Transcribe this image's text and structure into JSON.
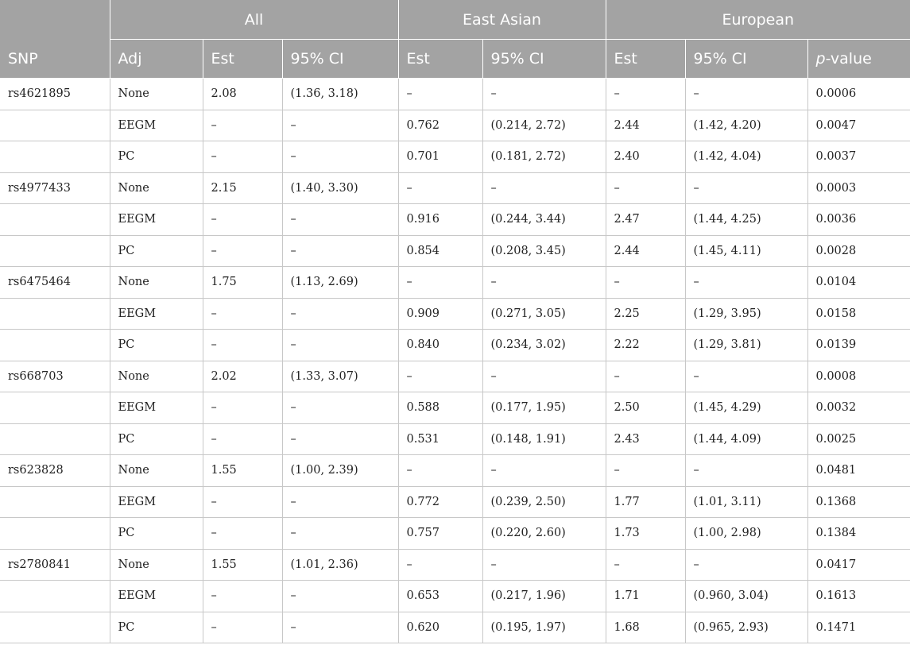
{
  "header": {
    "groups": [
      "All",
      "East Asian",
      "European"
    ],
    "columns": [
      "SNP",
      "Adj",
      "Est",
      "95% CI",
      "Est",
      "95% CI",
      "Est",
      "95% CI"
    ],
    "pvalue_prefix": "p",
    "pvalue_suffix": "-value"
  },
  "rows": [
    {
      "snp": "rs4621895",
      "adj": "None",
      "all_est": "2.08",
      "all_ci": "(1.36, 3.18)",
      "ea_est": "–",
      "ea_ci": "–",
      "eu_est": "–",
      "eu_ci": "–",
      "p": "0.0006"
    },
    {
      "snp": "",
      "adj": "EEGM",
      "all_est": "–",
      "all_ci": "–",
      "ea_est": "0.762",
      "ea_ci": "(0.214, 2.72)",
      "eu_est": "2.44",
      "eu_ci": "(1.42, 4.20)",
      "p": "0.0047"
    },
    {
      "snp": "",
      "adj": "PC",
      "all_est": "–",
      "all_ci": "–",
      "ea_est": "0.701",
      "ea_ci": "(0.181, 2.72)",
      "eu_est": "2.40",
      "eu_ci": "(1.42, 4.04)",
      "p": "0.0037"
    },
    {
      "snp": "rs4977433",
      "adj": "None",
      "all_est": "2.15",
      "all_ci": "(1.40, 3.30)",
      "ea_est": "–",
      "ea_ci": "–",
      "eu_est": "–",
      "eu_ci": "–",
      "p": "0.0003"
    },
    {
      "snp": "",
      "adj": "EEGM",
      "all_est": "–",
      "all_ci": "–",
      "ea_est": "0.916",
      "ea_ci": "(0.244, 3.44)",
      "eu_est": "2.47",
      "eu_ci": "(1.44, 4.25)",
      "p": "0.0036"
    },
    {
      "snp": "",
      "adj": "PC",
      "all_est": "–",
      "all_ci": "–",
      "ea_est": "0.854",
      "ea_ci": "(0.208, 3.45)",
      "eu_est": "2.44",
      "eu_ci": "(1.45, 4.11)",
      "p": "0.0028"
    },
    {
      "snp": "rs6475464",
      "adj": "None",
      "all_est": "1.75",
      "all_ci": "(1.13, 2.69)",
      "ea_est": "–",
      "ea_ci": "–",
      "eu_est": "–",
      "eu_ci": "–",
      "p": "0.0104"
    },
    {
      "snp": "",
      "adj": "EEGM",
      "all_est": "–",
      "all_ci": "–",
      "ea_est": "0.909",
      "ea_ci": "(0.271, 3.05)",
      "eu_est": "2.25",
      "eu_ci": "(1.29, 3.95)",
      "p": "0.0158"
    },
    {
      "snp": "",
      "adj": "PC",
      "all_est": "–",
      "all_ci": "–",
      "ea_est": "0.840",
      "ea_ci": "(0.234, 3.02)",
      "eu_est": "2.22",
      "eu_ci": "(1.29, 3.81)",
      "p": "0.0139"
    },
    {
      "snp": "rs668703",
      "adj": "None",
      "all_est": "2.02",
      "all_ci": "(1.33, 3.07)",
      "ea_est": "–",
      "ea_ci": "–",
      "eu_est": "–",
      "eu_ci": "–",
      "p": "0.0008"
    },
    {
      "snp": "",
      "adj": "EEGM",
      "all_est": "–",
      "all_ci": "–",
      "ea_est": "0.588",
      "ea_ci": "(0.177, 1.95)",
      "eu_est": "2.50",
      "eu_ci": "(1.45, 4.29)",
      "p": "0.0032"
    },
    {
      "snp": "",
      "adj": "PC",
      "all_est": "–",
      "all_ci": "–",
      "ea_est": "0.531",
      "ea_ci": "(0.148, 1.91)",
      "eu_est": "2.43",
      "eu_ci": "(1.44, 4.09)",
      "p": "0.0025"
    },
    {
      "snp": "rs623828",
      "adj": "None",
      "all_est": "1.55",
      "all_ci": "(1.00, 2.39)",
      "ea_est": "–",
      "ea_ci": "–",
      "eu_est": "–",
      "eu_ci": "–",
      "p": "0.0481"
    },
    {
      "snp": "",
      "adj": "EEGM",
      "all_est": "–",
      "all_ci": "–",
      "ea_est": "0.772",
      "ea_ci": "(0.239, 2.50)",
      "eu_est": "1.77",
      "eu_ci": "(1.01, 3.11)",
      "p": "0.1368"
    },
    {
      "snp": "",
      "adj": "PC",
      "all_est": "–",
      "all_ci": "–",
      "ea_est": "0.757",
      "ea_ci": "(0.220, 2.60)",
      "eu_est": "1.73",
      "eu_ci": "(1.00, 2.98)",
      "p": "0.1384"
    },
    {
      "snp": "rs2780841",
      "adj": "None",
      "all_est": "1.55",
      "all_ci": "(1.01, 2.36)",
      "ea_est": "–",
      "ea_ci": "–",
      "eu_est": "–",
      "eu_ci": "–",
      "p": "0.0417"
    },
    {
      "snp": "",
      "adj": "EEGM",
      "all_est": "–",
      "all_ci": "–",
      "ea_est": "0.653",
      "ea_ci": "(0.217, 1.96)",
      "eu_est": "1.71",
      "eu_ci": "(0.960, 3.04)",
      "p": "0.1613"
    },
    {
      "snp": "",
      "adj": "PC",
      "all_est": "–",
      "all_ci": "–",
      "ea_est": "0.620",
      "ea_ci": "(0.195, 1.97)",
      "eu_est": "1.68",
      "eu_ci": "(0.965, 2.93)",
      "p": "0.1471"
    }
  ]
}
